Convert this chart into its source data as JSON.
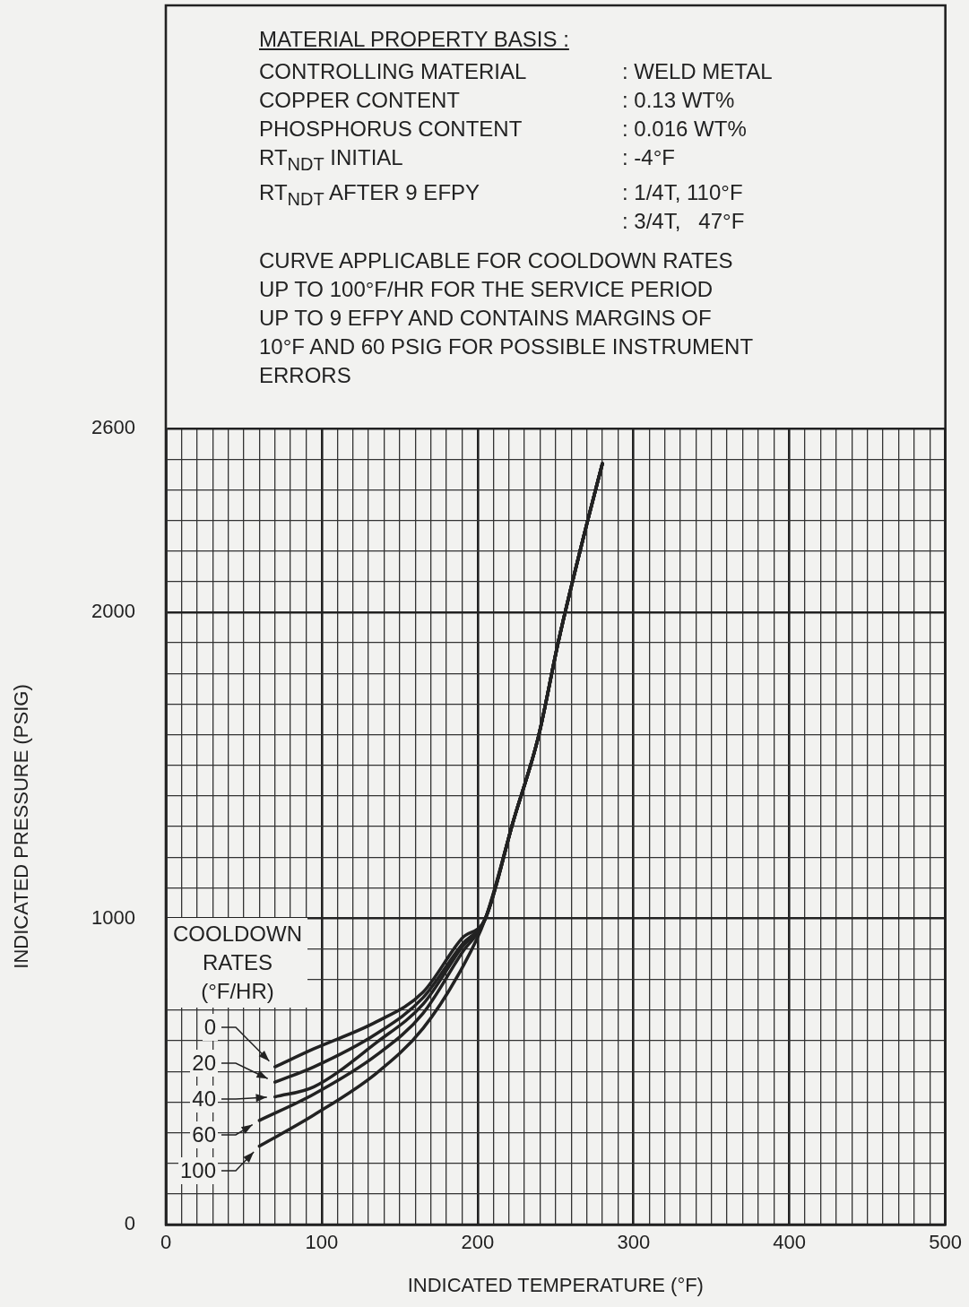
{
  "chart_data": {
    "type": "line",
    "title": "MATERIAL PROPERTY BASIS :",
    "annotations": [
      "CONTROLLING MATERIAL",
      ": WELD METAL",
      "COPPER CONTENT",
      ": 0.13 WT%",
      "PHOSPHORUS CONTENT",
      ": 0.016 WT%",
      "RT$_{NDT}$ INITIAL",
      ": -4°F",
      "RT$_{NDT}$ AFTER 9 EFPY",
      ": 1/4T, 110°F\n: 3/4T,   47°F",
      "CURVE APPLICABLE FOR COOLDOWN RATES\nUP TO 100°F/HR FOR THE SERVICE PERIOD\nUP TO 9 EFPY AND CONTAINS MARGINS OF\n10°F AND 60 PSIG FOR POSSIBLE INSTRUMENT\nERRORS"
    ],
    "xlabel": "INDICATED TEMPERATURE (°F)",
    "ylabel": "INDICATED PRESSURE (PSIG)",
    "legend_title": "COOLDOWN\nRATES\n(°F/HR)",
    "legend": "bottom left",
    "grid": true,
    "xlim": [
      0,
      500
    ],
    "ylim": [
      0,
      2600
    ],
    "xticks": [
      0,
      {
        "value": 10,
        "label": null
      },
      {
        "value": 20,
        "label": null
      },
      {
        "value": 30,
        "label": null
      },
      {
        "value": 40,
        "label": null
      },
      {
        "value": 50,
        "label": null
      },
      {
        "value": 60,
        "label": null
      },
      {
        "value": 70,
        "label": null
      },
      {
        "value": 80,
        "label": null
      },
      {
        "value": 90,
        "label": null
      },
      100,
      {
        "value": 110,
        "label": null
      },
      {
        "value": 120,
        "label": null
      },
      {
        "value": 130,
        "label": null
      },
      {
        "value": 140,
        "label": null
      },
      {
        "value": 150,
        "label": null
      },
      {
        "value": 160,
        "label": null
      },
      {
        "value": 170,
        "label": null
      },
      {
        "value": 180,
        "label": null
      },
      {
        "value": 190,
        "label": null
      },
      200,
      {
        "value": 210,
        "label": null
      },
      {
        "value": 220,
        "label": null
      },
      {
        "value": 230,
        "label": null
      },
      {
        "value": 240,
        "label": null
      },
      {
        "value": 250,
        "label": null
      },
      {
        "value": 260,
        "label": null
      },
      {
        "value": 270,
        "label": null
      },
      {
        "value": 280,
        "label": null
      },
      {
        "value": 290,
        "label": null
      },
      300,
      {
        "value": 310,
        "label": null
      },
      {
        "value": 320,
        "label": null
      },
      {
        "value": 330,
        "label": null
      },
      {
        "value": 340,
        "label": null
      },
      {
        "value": 350,
        "label": null
      },
      {
        "value": 360,
        "label": null
      },
      {
        "value": 370,
        "label": null
      },
      {
        "value": 380,
        "label": null
      },
      {
        "value": 390,
        "label": null
      },
      400,
      {
        "value": 410,
        "label": null
      },
      {
        "value": 420,
        "label": null
      },
      {
        "value": 430,
        "label": null
      },
      {
        "value": 440,
        "label": null
      },
      {
        "value": 450,
        "label": null
      },
      {
        "value": 460,
        "label": null
      },
      {
        "value": 470,
        "label": null
      },
      {
        "value": 480,
        "label": null
      },
      {
        "value": 490,
        "label": null
      },
      500
    ],
    "yticks": [
      0,
      {
        "value": 100,
        "label": null
      },
      {
        "value": 200,
        "label": null
      },
      {
        "value": 300,
        "label": null
      },
      {
        "value": 400,
        "label": null
      },
      {
        "value": 500,
        "label": null
      },
      {
        "value": 600,
        "label": null
      },
      {
        "value": 700,
        "label": null
      },
      {
        "value": 800,
        "label": null
      },
      {
        "value": 900,
        "label": null
      },
      1000,
      {
        "value": 1100,
        "label": null
      },
      {
        "value": 1200,
        "label": null
      },
      {
        "value": 1300,
        "label": null
      },
      {
        "value": 1400,
        "label": null
      },
      {
        "value": 1500,
        "label": null
      },
      {
        "value": 1600,
        "label": null
      },
      {
        "value": 1700,
        "label": null
      },
      {
        "value": 1800,
        "label": null
      },
      {
        "value": 1900,
        "label": null
      },
      2000,
      {
        "value": 2100,
        "label": null
      },
      {
        "value": 2200,
        "label": null
      },
      {
        "value": 2300,
        "label": null
      },
      {
        "value": 2400,
        "label": null
      },
      {
        "value": 2500,
        "label": null
      },
      2600
    ],
    "series": [
      {
        "name": "0",
        "color": "#222222",
        "x": [
          70,
          95,
          135,
          165,
          190,
          205,
          223,
          239,
          252,
          270,
          280
        ],
        "values": [
          515,
          574,
          662,
          759,
          935,
          1000,
          1320,
          1594,
          1909,
          2288,
          2485
        ]
      },
      {
        "name": "20",
        "color": "#222222",
        "x": [
          70,
          95,
          135,
          165,
          190,
          205,
          223,
          239,
          252,
          270,
          280
        ],
        "values": [
          465,
          515,
          623,
          741,
          915,
          1000,
          1320,
          1594,
          1909,
          2288,
          2485
        ]
      },
      {
        "name": "40",
        "color": "#222222",
        "x": [
          70,
          95,
          135,
          165,
          190,
          205,
          223,
          239,
          252,
          270,
          280
        ],
        "values": [
          417,
          450,
          594,
          720,
          906,
          1000,
          1320,
          1594,
          1909,
          2288,
          2485
        ]
      },
      {
        "name": "60",
        "color": "#222222",
        "x": [
          60,
          95,
          135,
          165,
          190,
          205,
          223,
          239,
          252,
          270,
          280
        ],
        "values": [
          340,
          426,
          553,
          690,
          888,
          1000,
          1320,
          1594,
          1909,
          2288,
          2485
        ]
      },
      {
        "name": "100",
        "color": "#222222",
        "x": [
          60,
          95,
          135,
          165,
          190,
          205,
          223,
          239,
          252,
          270,
          280
        ],
        "values": [
          256,
          358,
          494,
          641,
          838,
          1000,
          1320,
          1594,
          1909,
          2288,
          2485
        ]
      }
    ]
  }
}
